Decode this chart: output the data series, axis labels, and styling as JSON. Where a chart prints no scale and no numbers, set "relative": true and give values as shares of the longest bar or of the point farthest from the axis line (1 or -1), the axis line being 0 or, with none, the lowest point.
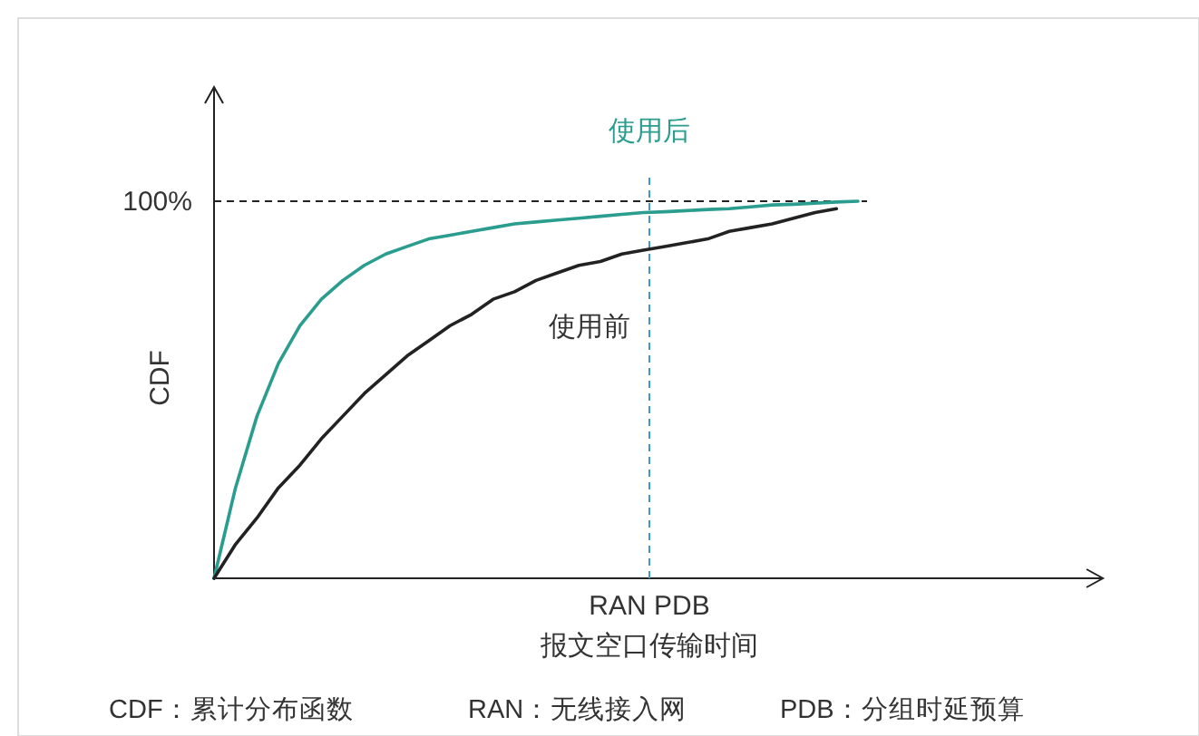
{
  "chart_data": {
    "type": "line",
    "relative": true,
    "ylabel": "CDF",
    "xlabel": "报文空口传输时间",
    "categories": [
      null,
      null,
      null,
      null,
      null,
      null,
      null,
      null,
      null,
      null,
      null,
      null,
      null,
      null,
      null,
      null,
      null,
      null,
      null,
      null,
      null,
      null,
      null,
      null,
      null,
      null,
      null,
      null,
      null,
      null,
      null
    ],
    "series": [
      {
        "name": "使用后",
        "color": "#2a9d8f",
        "values": [
          0,
          0.24,
          0.43,
          0.57,
          0.67,
          0.74,
          0.79,
          0.83,
          0.86,
          0.88,
          0.9,
          0.91,
          0.92,
          0.93,
          0.94,
          0.945,
          0.95,
          0.955,
          0.96,
          0.965,
          0.97,
          0.972,
          0.975,
          0.978,
          0.98,
          0.985,
          0.99,
          0.992,
          0.995,
          0.998,
          1.0
        ]
      },
      {
        "name": "使用前",
        "color": "#222222",
        "values": [
          0,
          0.09,
          0.16,
          0.24,
          0.3,
          0.37,
          0.43,
          0.49,
          0.54,
          0.59,
          0.63,
          0.67,
          0.7,
          0.74,
          0.76,
          0.79,
          0.81,
          0.83,
          0.84,
          0.86,
          0.87,
          0.88,
          0.89,
          0.9,
          0.92,
          0.93,
          0.94,
          0.955,
          0.97,
          0.98,
          null
        ]
      }
    ],
    "ref_lines": [
      {
        "axis": "y",
        "value": 1,
        "label": "100%",
        "color": "#222222",
        "line_style": "dashed"
      }
    ],
    "annotations": [
      "RAN PDB",
      "CDF：累计分布函数",
      "RAN：无线接入网",
      "PDB：分组时延预算"
    ],
    "grid": false,
    "marker": "none",
    "line_style": "solid"
  }
}
